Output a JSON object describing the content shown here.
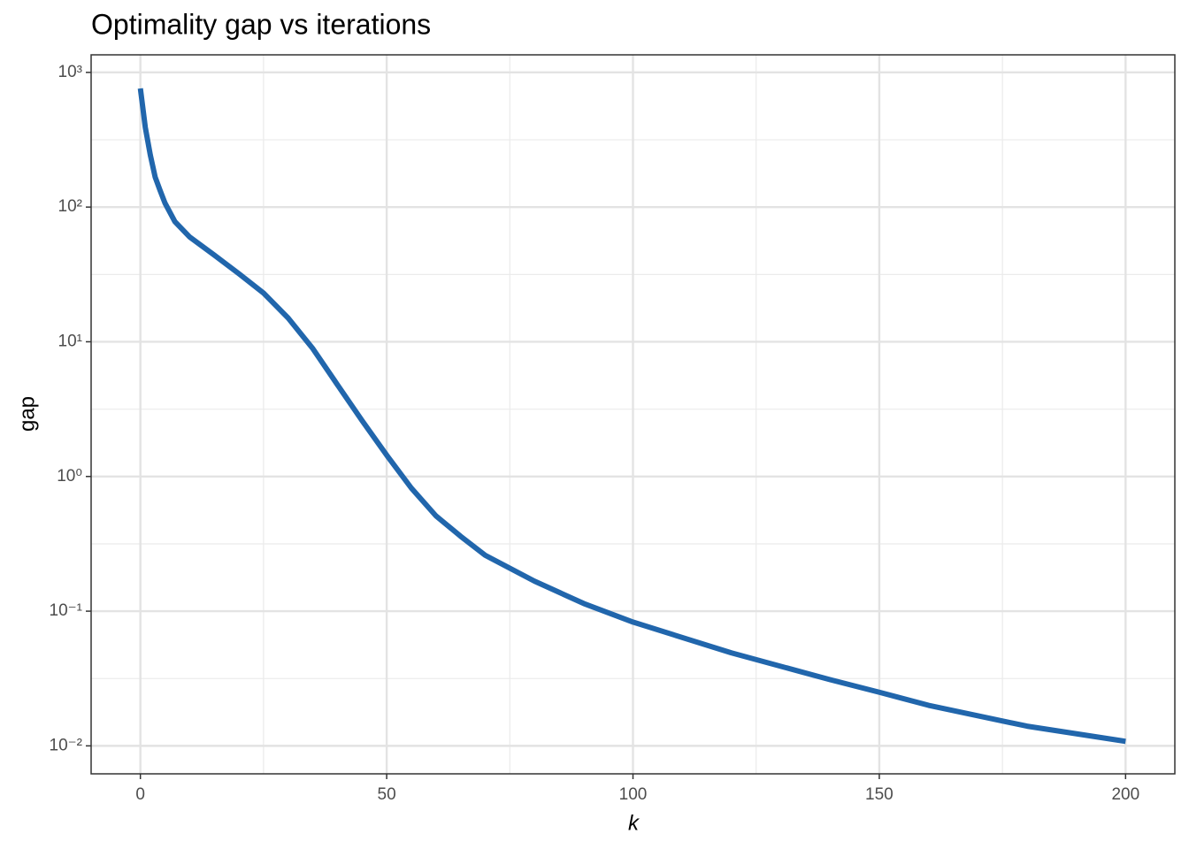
{
  "chart_data": {
    "type": "line",
    "title": "Optimality gap vs iterations",
    "x_label": "k",
    "y_label": "gap",
    "x": [
      0,
      1,
      2,
      3,
      4,
      5,
      7,
      10,
      15,
      20,
      25,
      30,
      35,
      40,
      45,
      50,
      55,
      60,
      65,
      70,
      80,
      90,
      100,
      120,
      140,
      150,
      160,
      180,
      200
    ],
    "values": [
      760,
      390,
      245,
      167,
      133,
      107,
      78,
      60,
      44,
      32,
      23,
      15,
      8.9,
      4.8,
      2.6,
      1.44,
      0.82,
      0.51,
      0.36,
      0.26,
      0.167,
      0.114,
      0.083,
      0.049,
      0.031,
      0.025,
      0.02,
      0.014,
      0.0108
    ],
    "color": "#2166ac",
    "xlim": [
      -10,
      210
    ],
    "xticks": [
      0,
      50,
      100,
      150,
      200
    ],
    "x_minor_ticks": [
      25,
      75,
      125,
      175
    ],
    "ylim": [
      0.0062,
      1350
    ],
    "log_y": true,
    "yticks": [
      {
        "value": 0.01,
        "label": "10⁻²"
      },
      {
        "value": 0.1,
        "label": "10⁻¹"
      },
      {
        "value": 1,
        "label": "10⁰"
      },
      {
        "value": 10,
        "label": "10¹"
      },
      {
        "value": 100,
        "label": "10²"
      },
      {
        "value": 1000,
        "label": "10³"
      }
    ],
    "y_minor_ticks": [
      0.0316,
      0.316,
      3.16,
      31.6,
      316
    ],
    "grid": true
  }
}
